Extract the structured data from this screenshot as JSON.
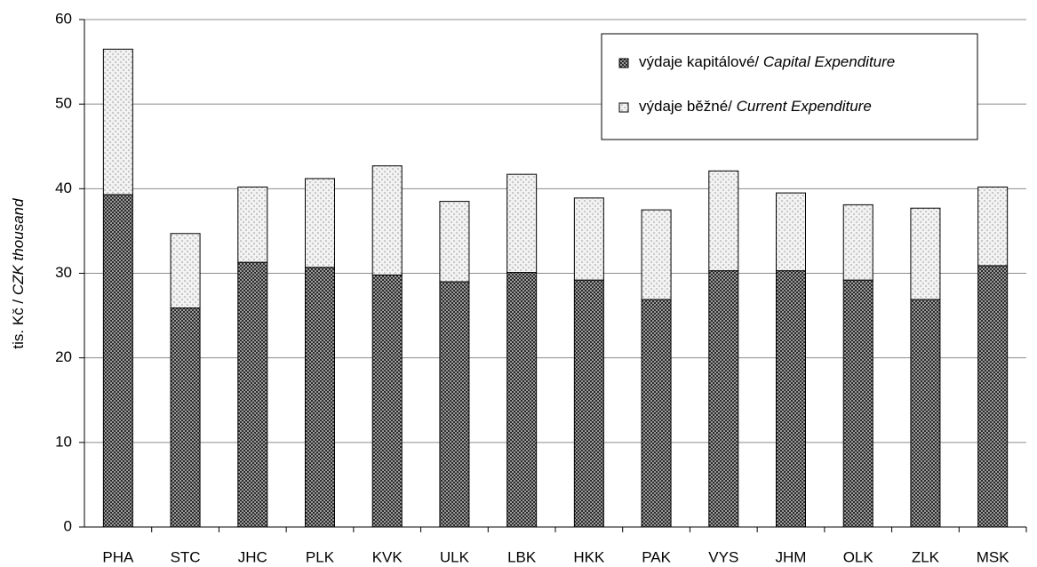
{
  "chart_data": {
    "type": "stacked_bar",
    "y_label": "tis. Kč / CZK thousand",
    "categories": [
      "PHA",
      "STC",
      "JHC",
      "PLK",
      "KVK",
      "ULK",
      "LBK",
      "HKK",
      "PAK",
      "VYS",
      "JHM",
      "OLK",
      "ZLK",
      "MSK"
    ],
    "series": [
      {
        "name": "výdaje kapitálové/ Capital Expenditure",
        "color": "#2b2b2b",
        "values": [
          39.3,
          25.9,
          31.3,
          30.7,
          29.8,
          29.0,
          30.1,
          29.2,
          26.9,
          30.3,
          30.3,
          29.2,
          26.9,
          30.9
        ]
      },
      {
        "name": "výdaje běžné/ Current Expenditure",
        "color": "#c8c8c8",
        "values": [
          17.2,
          8.8,
          8.9,
          10.5,
          12.9,
          9.5,
          11.6,
          9.7,
          10.6,
          11.8,
          9.2,
          8.9,
          10.8,
          9.3
        ]
      }
    ],
    "ylim": [
      0,
      60
    ],
    "yticks": [
      0,
      10,
      20,
      30,
      40,
      50,
      60
    ],
    "grid": true,
    "legend": "upper right"
  }
}
